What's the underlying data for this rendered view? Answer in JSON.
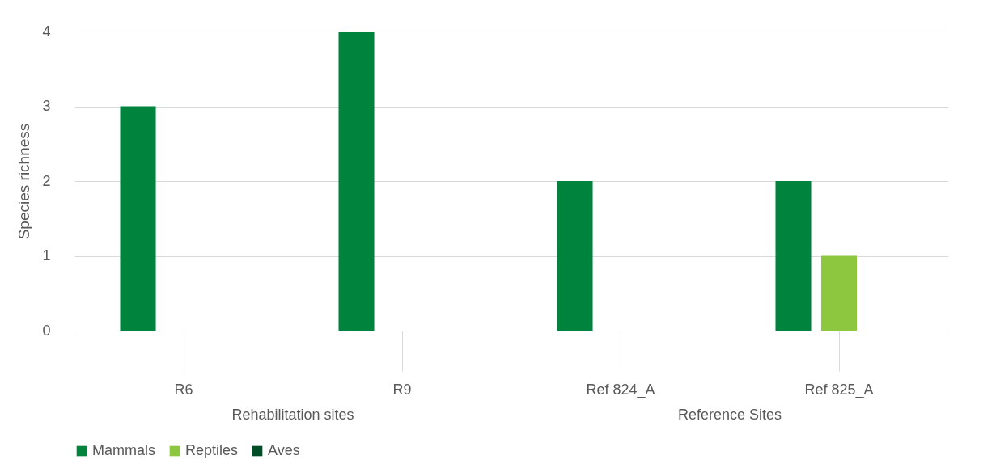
{
  "chart_data": {
    "type": "bar",
    "ylabel": "Species richness",
    "categories": [
      "R6",
      "R9",
      "Ref 824_A",
      "Ref 825_A"
    ],
    "series": [
      {
        "name": "Mammals",
        "color": "#00843d",
        "values": [
          3,
          4,
          2,
          2
        ]
      },
      {
        "name": "Reptiles",
        "color": "#8dc63f",
        "values": [
          0,
          0,
          0,
          1
        ]
      },
      {
        "name": "Aves",
        "color": "#004d26",
        "values": [
          0,
          0,
          0,
          0
        ]
      }
    ],
    "ylim": [
      0,
      4
    ],
    "yticks": [
      0,
      1,
      2,
      3,
      4
    ],
    "grid": "y",
    "legend": "bottom",
    "annotations": [
      "Rehabilitation sites",
      "Reference Sites"
    ]
  }
}
